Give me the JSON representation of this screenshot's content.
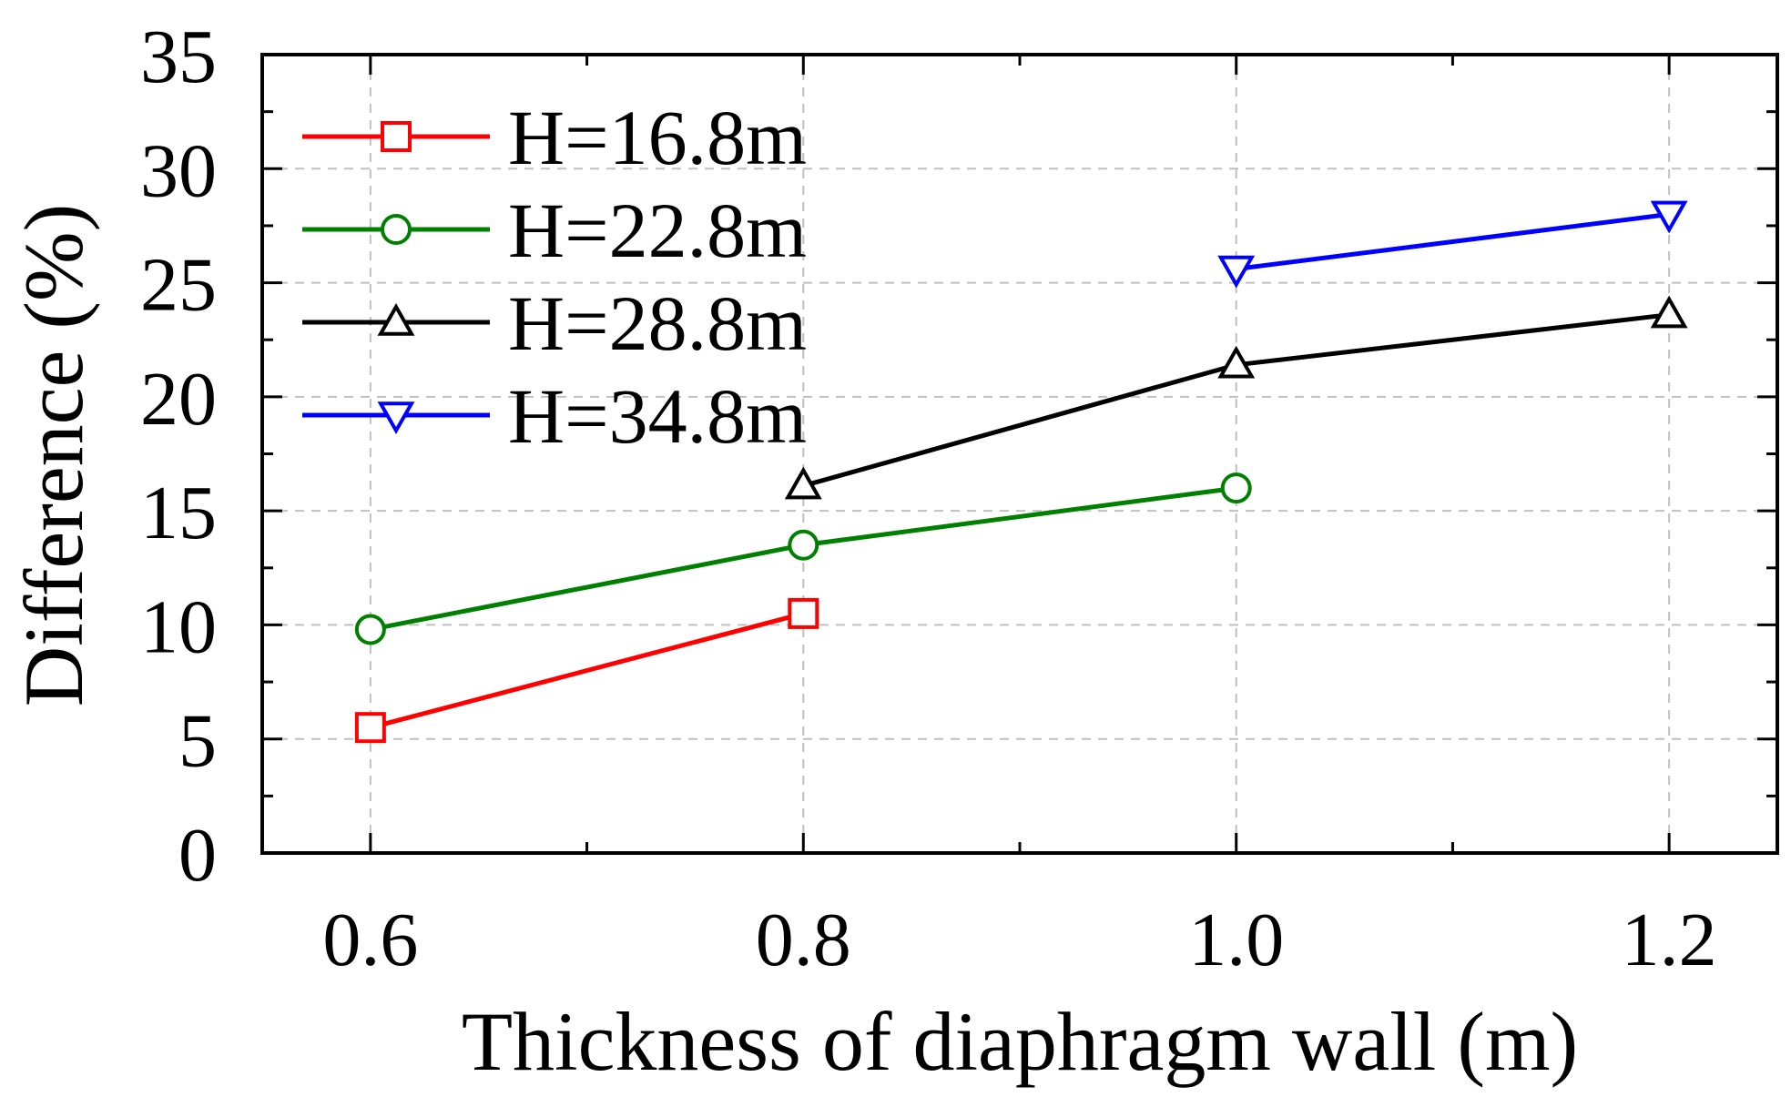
{
  "chart_data": {
    "type": "line",
    "xlabel": "Thickness of diaphragm wall (m)",
    "ylabel": "Difference (%)",
    "xlim": [
      0.55,
      1.25
    ],
    "ylim": [
      0,
      35
    ],
    "x_ticks": [
      "0.6",
      "0.8",
      "1.0",
      "1.2"
    ],
    "y_ticks": [
      "0",
      "5",
      "10",
      "15",
      "20",
      "25",
      "30",
      "35"
    ],
    "grid": true,
    "legend_position": "top-left",
    "series": [
      {
        "name": "H=16.8m",
        "color": "#ff0000",
        "marker": "square",
        "points": [
          {
            "x": 0.6,
            "y": 5.5
          },
          {
            "x": 0.8,
            "y": 10.5
          }
        ]
      },
      {
        "name": "H=22.8m",
        "color": "#008000",
        "marker": "circle",
        "points": [
          {
            "x": 0.6,
            "y": 9.8
          },
          {
            "x": 0.8,
            "y": 13.5
          },
          {
            "x": 1.0,
            "y": 16.0
          }
        ]
      },
      {
        "name": "H=28.8m",
        "color": "#000000",
        "marker": "triangle-up",
        "points": [
          {
            "x": 0.8,
            "y": 16.1
          },
          {
            "x": 1.0,
            "y": 21.4
          },
          {
            "x": 1.2,
            "y": 23.6
          }
        ]
      },
      {
        "name": "H=34.8m",
        "color": "#0000ff",
        "marker": "triangle-down",
        "points": [
          {
            "x": 1.0,
            "y": 25.6
          },
          {
            "x": 1.2,
            "y": 28.0
          }
        ]
      }
    ]
  }
}
